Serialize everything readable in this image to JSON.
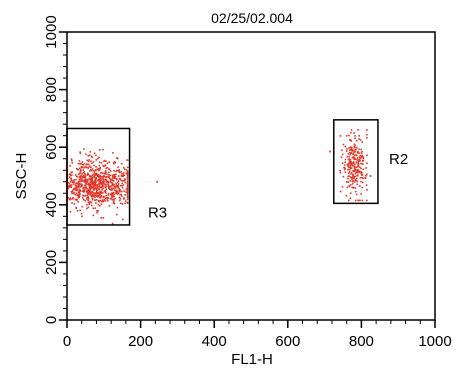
{
  "chart_data": {
    "type": "scatter",
    "title": "02/25/02.004",
    "xlabel": "FL1-H",
    "ylabel": "SSC-H",
    "xlim": [
      0,
      1000
    ],
    "ylim": [
      0,
      1000
    ],
    "x_ticks": [
      "0",
      "200",
      "400",
      "600",
      "800",
      "1000"
    ],
    "y_ticks": [
      "0",
      "200",
      "400",
      "600",
      "800",
      "1000"
    ],
    "x_tick_values": [
      0,
      200,
      400,
      600,
      800,
      1000
    ],
    "y_tick_values": [
      0,
      200,
      400,
      600,
      800,
      1000
    ],
    "grid": false,
    "point_color": "#e0392b",
    "populations": [
      {
        "center_x": 80,
        "center_y": 470,
        "spread_x": 55,
        "spread_y": 40,
        "min_x": 0,
        "max_x": 165,
        "min_y": 335,
        "max_y": 655,
        "count": 900
      },
      {
        "center_x": 780,
        "center_y": 535,
        "spread_x": 15,
        "spread_y": 55,
        "min_x": 740,
        "max_x": 815,
        "min_y": 415,
        "max_y": 660,
        "count": 260
      }
    ],
    "outliers": [
      {
        "x": 245,
        "y": 480
      },
      {
        "x": 715,
        "y": 585
      },
      {
        "x": 825,
        "y": 500
      }
    ],
    "regions": [
      {
        "name": "R3",
        "x_min": 0,
        "x_max": 170,
        "y_min": 330,
        "y_max": 665,
        "label_x": 220,
        "label_y": 370
      },
      {
        "name": "R2",
        "x_min": 725,
        "x_max": 845,
        "y_min": 405,
        "y_max": 695,
        "label_x": 875,
        "label_y": 555
      }
    ]
  }
}
